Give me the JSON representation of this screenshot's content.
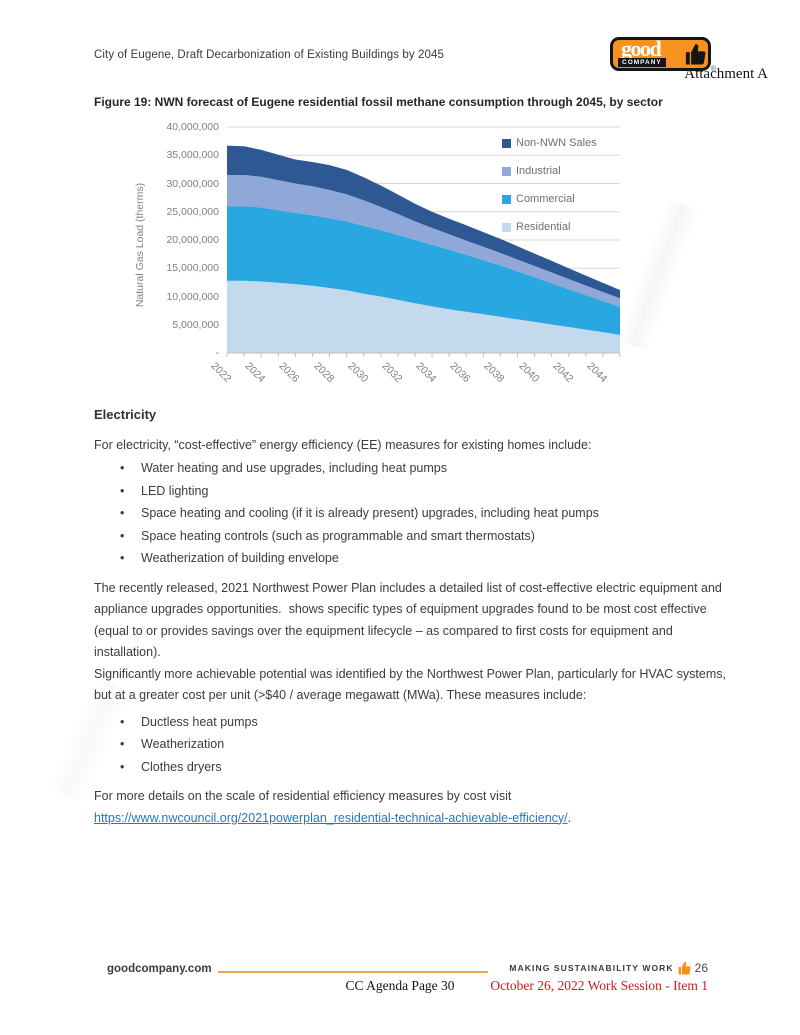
{
  "header": {
    "doc_title": "City of Eugene, Draft Decarbonization of Existing Buildings by 2045",
    "attachment": "Attachment A",
    "logo": {
      "word_top": "good",
      "word_bottom": "COMPANY",
      "registered": "®",
      "icon": "thumbs-up",
      "orange": "#F6921E",
      "black": "#151515"
    }
  },
  "figure": {
    "caption": "Figure 19: NWN forecast of Eugene residential fossil methane consumption through 2045, by sector"
  },
  "chart_data": {
    "type": "area",
    "stacked": true,
    "ylabel": "Natural Gas Load (therms)",
    "ylim": [
      0,
      40000000
    ],
    "ytick_step": 5000000,
    "ytick_labels_top_down": [
      "40,000,000",
      "35,000,000",
      "30,000,000",
      "25,000,000",
      "20,000,000",
      "15,000,000",
      "10,000,000",
      "5,000,000",
      "-"
    ],
    "x": [
      2022,
      2023,
      2024,
      2025,
      2026,
      2027,
      2028,
      2029,
      2030,
      2031,
      2032,
      2033,
      2034,
      2035,
      2036,
      2037,
      2038,
      2039,
      2040,
      2041,
      2042,
      2043,
      2044,
      2045
    ],
    "xtick_labels": [
      "2022",
      "2024",
      "2026",
      "2028",
      "2030",
      "2032",
      "2034",
      "2036",
      "2038",
      "2040",
      "2042",
      "2044"
    ],
    "grid": true,
    "legend_position": "inside-top-right",
    "legend_order": [
      "Non-NWN Sales",
      "Industrial",
      "Commercial",
      "Residential"
    ],
    "series": [
      {
        "name": "Residential",
        "color": "#C3D9EE",
        "values": [
          12800000,
          12800000,
          12650000,
          12450000,
          12200000,
          11900000,
          11500000,
          11100000,
          10500000,
          10000000,
          9400000,
          8800000,
          8250000,
          7750000,
          7300000,
          6850000,
          6400000,
          5950000,
          5500000,
          5050000,
          4600000,
          4150000,
          3700000,
          3200000
        ]
      },
      {
        "name": "Commercial",
        "color": "#29A7E0",
        "values": [
          13200000,
          13200000,
          13100000,
          12850000,
          12600000,
          12500000,
          12350000,
          12200000,
          12000000,
          11750000,
          11500000,
          11200000,
          10900000,
          10550000,
          10100000,
          9600000,
          9100000,
          8500000,
          7900000,
          7300000,
          6700000,
          6100000,
          5500000,
          5000000
        ]
      },
      {
        "name": "Industrial",
        "color": "#8FA8D8",
        "values": [
          5500000,
          5500000,
          5450000,
          5300000,
          5200000,
          5100000,
          5000000,
          4800000,
          4500000,
          4100000,
          3700000,
          3300000,
          3000000,
          2700000,
          2500000,
          2350000,
          2200000,
          2100000,
          2000000,
          1900000,
          1800000,
          1700000,
          1600000,
          1500000
        ]
      },
      {
        "name": "Non-NWN Sales",
        "color": "#2D5894",
        "values": [
          5200000,
          5100000,
          4750000,
          4500000,
          4250000,
          4300000,
          4400000,
          4300000,
          4100000,
          3800000,
          3450000,
          3100000,
          2850000,
          2750000,
          2700000,
          2600000,
          2500000,
          2350000,
          2200000,
          2050000,
          1900000,
          1750000,
          1600000,
          1450000
        ]
      }
    ],
    "grid_color": "#D9D9D9",
    "axis_color": "#BFBFBF"
  },
  "body": {
    "heading": "Electricity",
    "intro": "For electricity, “cost-effective” energy efficiency (EE) measures for existing homes include:",
    "bullets1": [
      "Water heating and use upgrades, including heat pumps",
      "LED lighting",
      "Space heating and cooling (if it is already present) upgrades, including heat pumps",
      "Space heating controls (such as programmable and smart thermostats)",
      "Weatherization of building envelope"
    ],
    "para2": "The recently released, 2021 Northwest Power Plan includes a detailed list of cost-effective electric equipment and appliance upgrades opportunities.  shows specific types of equipment upgrades found to be most cost effective (equal to or provides savings over the equipment lifecycle – as compared to first costs for equipment and installation).",
    "para3": "Significantly more achievable potential was identified by the Northwest Power Plan, particularly for HVAC systems, but at a greater cost per unit (>$40 / average megawatt (MWa). These measures include:",
    "bullets2": [
      "Ductless heat pumps",
      "Weatherization",
      "Clothes dryers"
    ],
    "para4": "For more details on the scale of residential efficiency measures by cost visit",
    "link_text": "https://www.nwcouncil.org/2021powerplan_residential-technical-achievable-efficiency/",
    "link_suffix": "."
  },
  "footer": {
    "website": "goodcompany.com",
    "tagline": "MAKING SUSTAINABILITY WORK",
    "tagline_icon": "thumbs-up",
    "page_number": "26",
    "agenda_note": "CC Agenda Page 30",
    "session_note": "October 26, 2022 Work Session - Item 1"
  },
  "colors": {
    "accent_orange": "#F6921E",
    "footer_rule_orange": "#F2A14E",
    "link_blue": "#2E75B6",
    "session_red": "#C4201D",
    "axis_text_gray": "#7F7F7F",
    "body_text": "#3C3C3C"
  }
}
